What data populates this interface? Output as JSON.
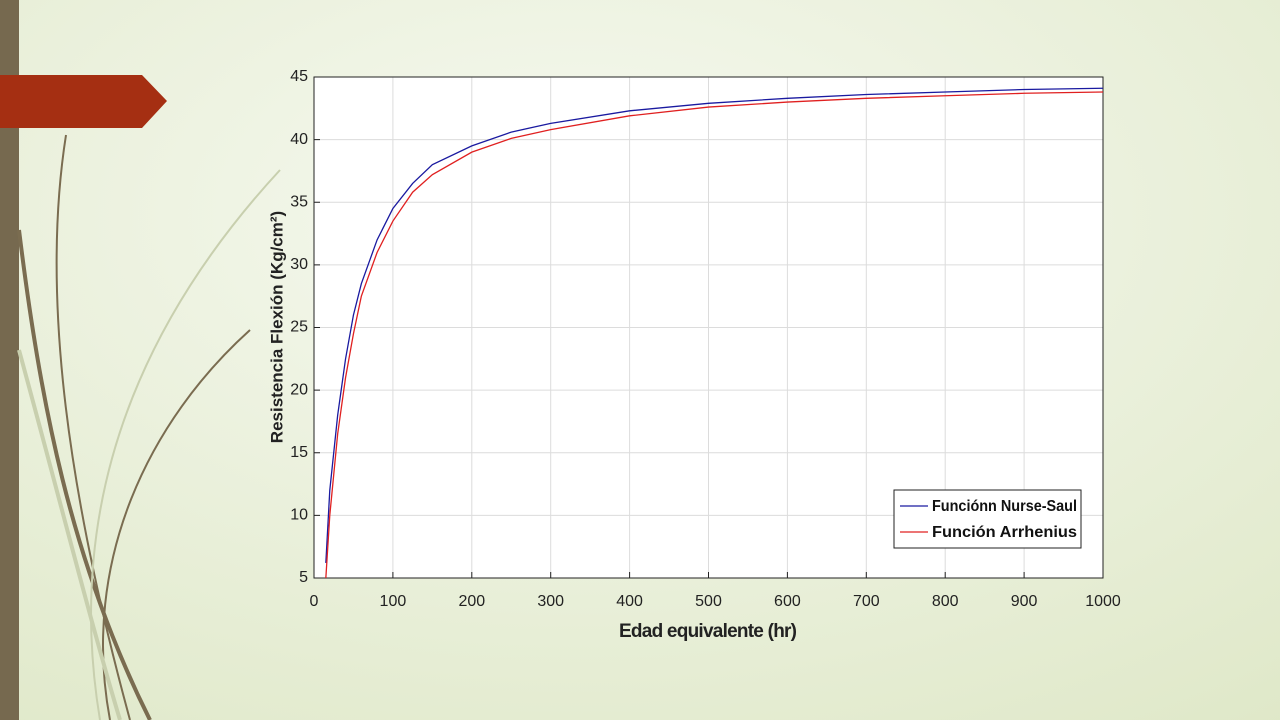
{
  "chart_data": {
    "type": "line",
    "xlabel": "Edad equivalente (hr)",
    "ylabel": "Resistencia Flexión (Kg/cm²)",
    "x": [
      15,
      20,
      30,
      40,
      50,
      60,
      80,
      100,
      125,
      150,
      200,
      250,
      300,
      400,
      500,
      600,
      700,
      800,
      900,
      1000
    ],
    "series": [
      {
        "name": "Funciónn Nurse-Saul",
        "color": "#1a1aa0",
        "values": [
          6.2,
          12,
          18,
          22.5,
          26,
          28.5,
          32,
          34.5,
          36.5,
          38,
          39.5,
          40.6,
          41.3,
          42.3,
          42.9,
          43.3,
          43.6,
          43.8,
          44.0,
          44.1
        ]
      },
      {
        "name": "Función Arrhenius",
        "color": "#e02020",
        "values": [
          5,
          10,
          16.5,
          21,
          24.5,
          27.5,
          31,
          33.5,
          35.8,
          37.2,
          39,
          40.1,
          40.8,
          41.9,
          42.6,
          43.0,
          43.3,
          43.5,
          43.7,
          43.8
        ]
      }
    ],
    "xlim": [
      0,
      1000
    ],
    "xticks": [
      0,
      100,
      200,
      300,
      400,
      500,
      600,
      700,
      800,
      900,
      1000
    ],
    "ylim": [
      5,
      45
    ],
    "yticks": [
      5,
      10,
      15,
      20,
      25,
      30,
      35,
      40,
      45
    ],
    "grid": true,
    "legend": "lower-right"
  }
}
